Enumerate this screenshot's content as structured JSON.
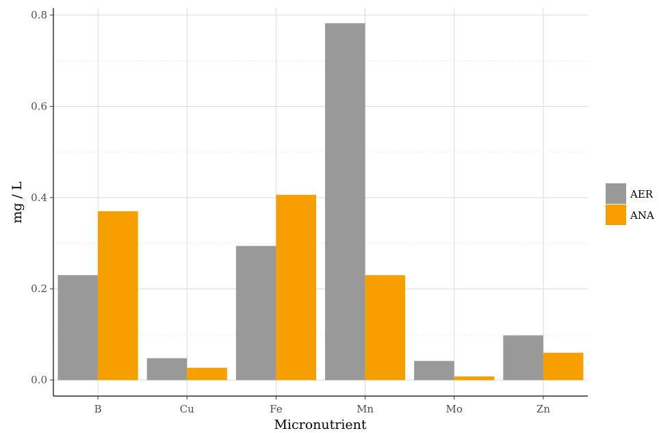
{
  "chart_data": {
    "type": "bar",
    "categories": [
      "B",
      "Cu",
      "Fe",
      "Mn",
      "Mo",
      "Zn"
    ],
    "series": [
      {
        "name": "AER",
        "color": "#999999",
        "values": [
          0.23,
          0.048,
          0.294,
          0.782,
          0.042,
          0.098
        ]
      },
      {
        "name": "ANA",
        "color": "#F89F00",
        "values": [
          0.37,
          0.027,
          0.406,
          0.23,
          0.008,
          0.06
        ]
      }
    ],
    "xlabel": "Micronutrient",
    "ylabel": "mg / L",
    "ylim": [
      -0.035,
      0.815
    ],
    "yticks": [
      0.0,
      0.2,
      0.4,
      0.6,
      0.8
    ],
    "ytick_labels": [
      "0.0",
      "0.2",
      "0.4",
      "0.6",
      "0.8"
    ],
    "grid": true,
    "legend_position": "right"
  }
}
